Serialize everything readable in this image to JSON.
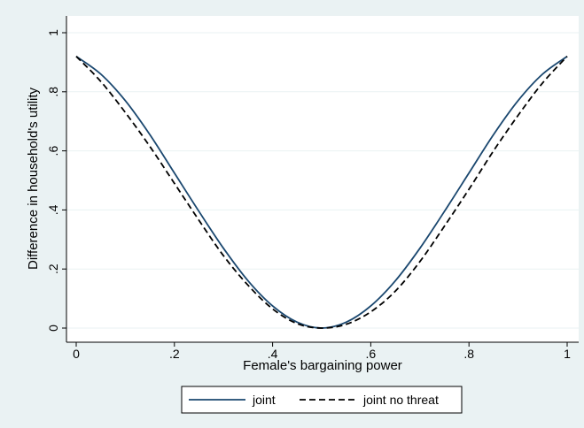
{
  "chart_data": {
    "type": "line",
    "title": "",
    "xlabel": "Female's bargaining power",
    "ylabel": "Difference in household's utility",
    "xlim": [
      0,
      1
    ],
    "ylim": [
      0,
      1
    ],
    "x_ticks": [
      {
        "value": 0,
        "label": "0"
      },
      {
        "value": 0.2,
        "label": ".2"
      },
      {
        "value": 0.4,
        "label": ".4"
      },
      {
        "value": 0.6,
        "label": ".6"
      },
      {
        "value": 0.8,
        "label": ".8"
      },
      {
        "value": 1,
        "label": "1"
      }
    ],
    "y_ticks": [
      {
        "value": 0,
        "label": "0"
      },
      {
        "value": 0.2,
        "label": ".2"
      },
      {
        "value": 0.4,
        "label": ".4"
      },
      {
        "value": 0.6,
        "label": ".6"
      },
      {
        "value": 0.8,
        "label": ".8"
      },
      {
        "value": 1,
        "label": "1"
      }
    ],
    "grid": true,
    "legend_position": "bottom",
    "series": [
      {
        "name": "joint",
        "color": "#1a476f",
        "style": "solid",
        "x": [
          0,
          0.05,
          0.1,
          0.15,
          0.2,
          0.25,
          0.3,
          0.35,
          0.4,
          0.45,
          0.5,
          0.55,
          0.6,
          0.65,
          0.7,
          0.75,
          0.8,
          0.85,
          0.9,
          0.95,
          1
        ],
        "y": [
          0.92,
          0.86,
          0.77,
          0.655,
          0.525,
          0.395,
          0.27,
          0.16,
          0.075,
          0.02,
          0,
          0.02,
          0.075,
          0.16,
          0.27,
          0.395,
          0.525,
          0.655,
          0.77,
          0.86,
          0.92
        ]
      },
      {
        "name": "joint no threat",
        "color": "#000000",
        "style": "dashed",
        "x": [
          0,
          0.05,
          0.1,
          0.15,
          0.2,
          0.25,
          0.3,
          0.35,
          0.4,
          0.45,
          0.5,
          0.55,
          0.6,
          0.65,
          0.7,
          0.75,
          0.8,
          0.85,
          0.9,
          0.95,
          1
        ],
        "y": [
          0.92,
          0.835,
          0.73,
          0.615,
          0.49,
          0.365,
          0.245,
          0.145,
          0.065,
          0.015,
          0,
          0.013,
          0.055,
          0.125,
          0.225,
          0.345,
          0.47,
          0.6,
          0.72,
          0.83,
          0.92
        ]
      }
    ]
  }
}
